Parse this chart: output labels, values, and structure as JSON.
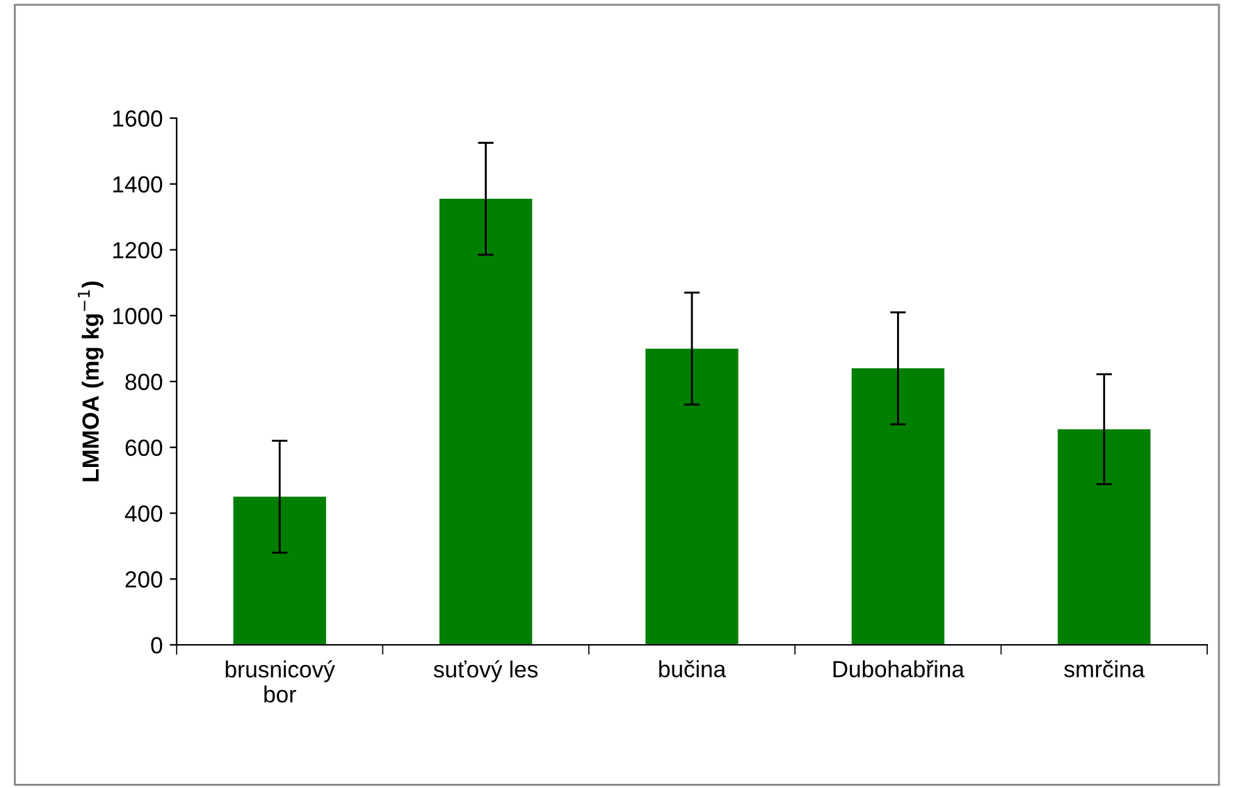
{
  "chart_data": {
    "type": "bar",
    "ylabel": "LMMOA (mg kg$^{−1}$)",
    "categories": [
      "brusnicový\nbor",
      "suťový les",
      "bučina",
      "Dubohabřina",
      "smrčina"
    ],
    "values": [
      450,
      1355,
      900,
      840,
      655
    ],
    "errors": [
      170,
      170,
      170,
      170,
      167
    ],
    "color": "#007f00",
    "ylim": [
      0,
      1600
    ],
    "yticks": [
      0,
      200,
      400,
      600,
      800,
      1000,
      1200,
      1400,
      1600
    ],
    "grid": false,
    "legend": false
  }
}
